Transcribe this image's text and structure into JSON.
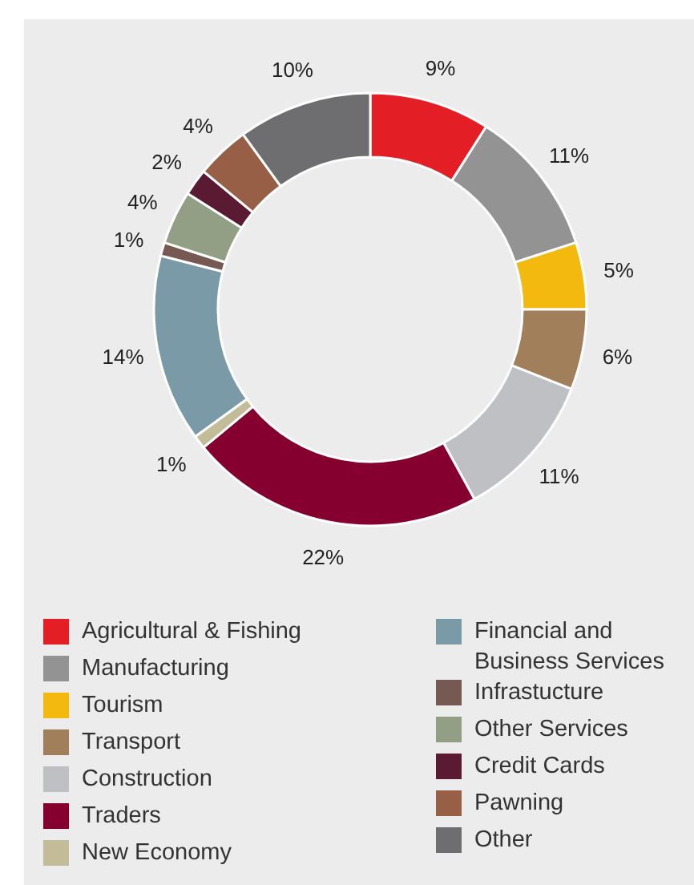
{
  "chart_data": {
    "type": "donut",
    "categories": [
      "Agricultural & Fishing",
      "Manufacturing",
      "Tourism",
      "Transport",
      "Construction",
      "Traders",
      "New Economy",
      "Financial and Business Services",
      "Infrastucture",
      "Other Services",
      "Credit Cards",
      "Pawning",
      "Other"
    ],
    "values": [
      9,
      11,
      5,
      6,
      11,
      22,
      1,
      14,
      1,
      4,
      2,
      4,
      10
    ],
    "value_labels": [
      "9%",
      "11%",
      "5%",
      "6%",
      "11%",
      "22%",
      "1%",
      "14%",
      "1%",
      "4%",
      "2%",
      "4%",
      "10%"
    ],
    "colors": [
      "#e31e24",
      "#939393",
      "#f4b90f",
      "#a07f5a",
      "#bfc0c3",
      "#85002f",
      "#c2bc98",
      "#7b9aa8",
      "#765953",
      "#929f85",
      "#5a1a32",
      "#975f45",
      "#6e6e70"
    ],
    "legend": "bottom"
  }
}
